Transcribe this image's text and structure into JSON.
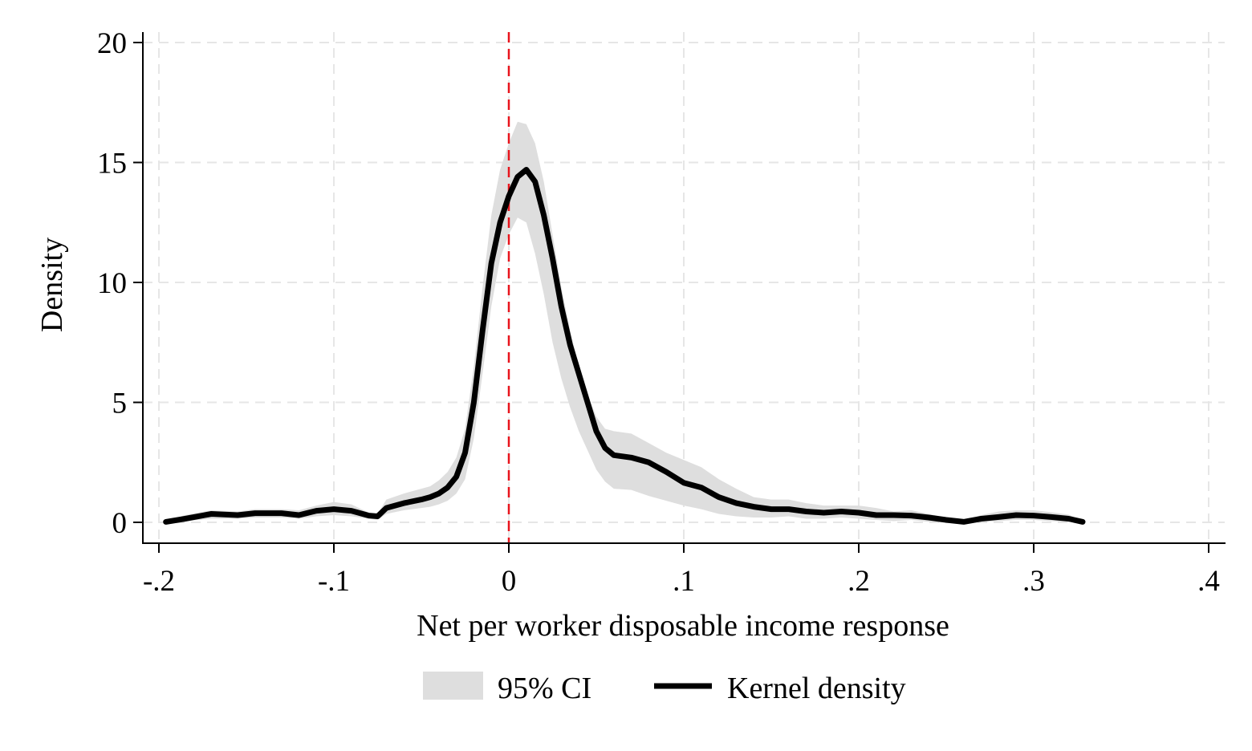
{
  "chart_data": {
    "type": "area",
    "xlabel": "Net per worker disposable income response",
    "ylabel": "Density",
    "xlim": [
      -0.2,
      0.4
    ],
    "ylim": [
      0,
      20
    ],
    "x_ticks": [
      {
        "value": -0.2,
        "label": "-.2"
      },
      {
        "value": -0.1,
        "label": "-.1"
      },
      {
        "value": 0,
        "label": "0"
      },
      {
        "value": 0.1,
        "label": ".1"
      },
      {
        "value": 0.2,
        "label": ".2"
      },
      {
        "value": 0.3,
        "label": ".3"
      },
      {
        "value": 0.4,
        "label": ".4"
      }
    ],
    "y_ticks": [
      {
        "value": 0,
        "label": "0"
      },
      {
        "value": 5,
        "label": "5"
      },
      {
        "value": 10,
        "label": "10"
      },
      {
        "value": 15,
        "label": "15"
      },
      {
        "value": 20,
        "label": "20"
      }
    ],
    "grid": true,
    "legend_position": "bottom",
    "reference_line": {
      "x": 0,
      "color": "#e8141c",
      "style": "dashed"
    },
    "series": [
      {
        "name": "95% CI",
        "kind": "band",
        "color": "#dedede",
        "x": [
          -0.196,
          -0.185,
          -0.17,
          -0.155,
          -0.145,
          -0.13,
          -0.12,
          -0.11,
          -0.1,
          -0.09,
          -0.08,
          -0.075,
          -0.07,
          -0.06,
          -0.05,
          -0.045,
          -0.04,
          -0.035,
          -0.03,
          -0.025,
          -0.02,
          -0.015,
          -0.01,
          -0.005,
          0,
          0.005,
          0.01,
          0.015,
          0.02,
          0.025,
          0.03,
          0.035,
          0.04,
          0.045,
          0.05,
          0.055,
          0.06,
          0.07,
          0.08,
          0.09,
          0.1,
          0.11,
          0.12,
          0.13,
          0.14,
          0.15,
          0.16,
          0.17,
          0.18,
          0.19,
          0.2,
          0.21,
          0.22,
          0.23,
          0.24,
          0.25,
          0.26,
          0.27,
          0.28,
          0.29,
          0.3,
          0.31,
          0.32,
          0.328
        ],
        "lower": [
          0,
          0.05,
          0.15,
          0.15,
          0.2,
          0.2,
          0.15,
          0.25,
          0.3,
          0.25,
          0.15,
          0.1,
          0.35,
          0.5,
          0.6,
          0.65,
          0.75,
          0.9,
          1.2,
          1.8,
          3.5,
          6.2,
          9,
          11,
          12,
          12.7,
          12.5,
          11.2,
          9.5,
          7.5,
          6,
          4.8,
          3.8,
          3,
          2.2,
          1.7,
          1.4,
          1.35,
          1.1,
          0.9,
          0.7,
          0.55,
          0.35,
          0.25,
          0.2,
          0.2,
          0.25,
          0.15,
          0.15,
          0.2,
          0.15,
          0.1,
          0.05,
          0.1,
          0.02,
          0,
          0,
          0.02,
          0.05,
          0.1,
          0.1,
          0.05,
          0.02,
          0
        ],
        "upper": [
          0.05,
          0.3,
          0.5,
          0.45,
          0.55,
          0.55,
          0.5,
          0.7,
          0.85,
          0.75,
          0.4,
          0.35,
          0.95,
          1.2,
          1.4,
          1.5,
          1.75,
          2.1,
          2.7,
          3.9,
          6.5,
          9.8,
          12.8,
          14.7,
          15.8,
          16.7,
          16.6,
          15.8,
          14.2,
          12,
          9.8,
          8,
          6.5,
          5.3,
          4.4,
          3.9,
          3.8,
          3.7,
          3.3,
          2.9,
          2.6,
          2.3,
          1.8,
          1.4,
          1.05,
          0.95,
          0.95,
          0.8,
          0.7,
          0.7,
          0.7,
          0.6,
          0.45,
          0.5,
          0.35,
          0.2,
          0.05,
          0.3,
          0.45,
          0.5,
          0.5,
          0.42,
          0.32,
          0.05
        ]
      },
      {
        "name": "Kernel density",
        "kind": "line",
        "color": "#000000",
        "x": [
          -0.196,
          -0.185,
          -0.17,
          -0.155,
          -0.145,
          -0.13,
          -0.12,
          -0.11,
          -0.1,
          -0.09,
          -0.08,
          -0.075,
          -0.07,
          -0.06,
          -0.05,
          -0.045,
          -0.04,
          -0.035,
          -0.03,
          -0.025,
          -0.02,
          -0.015,
          -0.01,
          -0.005,
          0,
          0.005,
          0.01,
          0.015,
          0.02,
          0.025,
          0.03,
          0.035,
          0.04,
          0.045,
          0.05,
          0.055,
          0.06,
          0.07,
          0.08,
          0.09,
          0.1,
          0.11,
          0.12,
          0.13,
          0.14,
          0.15,
          0.16,
          0.17,
          0.18,
          0.19,
          0.2,
          0.21,
          0.22,
          0.23,
          0.24,
          0.25,
          0.26,
          0.27,
          0.28,
          0.29,
          0.3,
          0.31,
          0.32,
          0.328
        ],
        "y": [
          0.02,
          0.15,
          0.35,
          0.3,
          0.38,
          0.38,
          0.3,
          0.48,
          0.55,
          0.48,
          0.28,
          0.25,
          0.6,
          0.8,
          0.95,
          1.05,
          1.2,
          1.45,
          1.9,
          2.9,
          5,
          8,
          10.8,
          12.5,
          13.6,
          14.4,
          14.7,
          14.2,
          12.8,
          11,
          9,
          7.4,
          6.2,
          5,
          3.8,
          3.1,
          2.8,
          2.7,
          2.5,
          2.1,
          1.65,
          1.45,
          1.05,
          0.8,
          0.65,
          0.55,
          0.55,
          0.45,
          0.4,
          0.45,
          0.4,
          0.3,
          0.3,
          0.28,
          0.2,
          0.1,
          0.02,
          0.15,
          0.22,
          0.3,
          0.28,
          0.22,
          0.15,
          0.02
        ]
      }
    ]
  }
}
